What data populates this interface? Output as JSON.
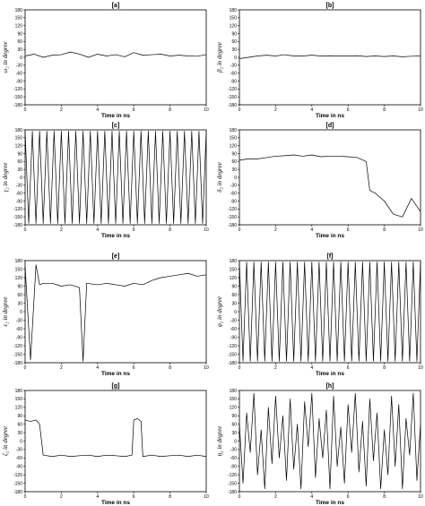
{
  "chart_data": [
    {
      "id": "a",
      "type": "line",
      "title": "[a]",
      "xlabel": "Time in ns",
      "ylabel": "ω₂ in degree",
      "xlim": [
        0,
        10
      ],
      "ylim": [
        -180,
        180
      ],
      "xticks": [
        "0",
        "2",
        "4",
        "6",
        "8",
        "10"
      ],
      "yticks": [
        "180",
        "150",
        "120",
        "90",
        "60",
        "30",
        "0",
        "-30",
        "-60",
        "-90",
        "-120",
        "-150",
        "-180"
      ],
      "x": [
        0,
        0.5,
        1,
        1.5,
        2,
        2.5,
        3,
        3.5,
        4,
        4.5,
        5,
        5.5,
        6,
        6.5,
        7,
        7.5,
        8,
        8.5,
        9,
        9.5,
        10
      ],
      "y": [
        5,
        12,
        0,
        8,
        10,
        20,
        12,
        0,
        12,
        5,
        10,
        2,
        18,
        8,
        10,
        12,
        5,
        8,
        5,
        4,
        10
      ]
    },
    {
      "id": "b",
      "type": "line",
      "title": "[b]",
      "xlabel": "Time in ns",
      "ylabel": "β₂ in degree",
      "xlim": [
        0,
        10
      ],
      "ylim": [
        -180,
        180
      ],
      "xticks": [
        "0",
        "2",
        "4",
        "6",
        "8",
        "10"
      ],
      "yticks": [
        "180",
        "150",
        "120",
        "90",
        "60",
        "30",
        "0",
        "-30",
        "-60",
        "-90",
        "-120",
        "-150",
        "-180"
      ],
      "x": [
        0,
        0.5,
        1,
        1.5,
        2,
        2.5,
        3,
        3.5,
        4,
        4.5,
        5,
        5.5,
        6,
        6.5,
        7,
        7.5,
        8,
        8.5,
        9,
        9.5,
        10
      ],
      "y": [
        -5,
        0,
        5,
        8,
        5,
        10,
        5,
        5,
        8,
        5,
        6,
        5,
        5,
        6,
        3,
        5,
        3,
        5,
        2,
        4,
        5
      ]
    },
    {
      "id": "c",
      "type": "line",
      "title": "[c]",
      "xlabel": "Time in ns",
      "ylabel": "γ₂ in degree",
      "xlim": [
        0,
        10
      ],
      "ylim": [
        -180,
        180
      ],
      "xticks": [
        "0",
        "2",
        "4",
        "6",
        "8",
        "10"
      ],
      "yticks": [
        "180",
        "150",
        "120",
        "90",
        "60",
        "30",
        "0",
        "-30",
        "-60",
        "-90",
        "-120",
        "-150",
        "-180"
      ],
      "x": [
        0,
        0.2,
        0.4,
        0.6,
        0.8,
        1,
        1.2,
        1.4,
        1.6,
        1.8,
        2,
        2.2,
        2.4,
        2.6,
        2.8,
        3,
        3.2,
        3.4,
        3.6,
        3.8,
        4,
        4.2,
        4.4,
        4.6,
        4.8,
        5,
        5.2,
        5.4,
        5.6,
        5.8,
        6,
        6.2,
        6.4,
        6.6,
        6.8,
        7,
        7.2,
        7.4,
        7.6,
        7.8,
        8,
        8.2,
        8.4,
        8.6,
        8.8,
        9,
        9.2,
        9.4,
        9.6,
        9.8,
        10
      ],
      "y": [
        175,
        -175,
        175,
        -175,
        175,
        -175,
        175,
        -175,
        175,
        -175,
        175,
        -175,
        175,
        -175,
        175,
        -175,
        175,
        -175,
        175,
        -175,
        175,
        -175,
        175,
        -175,
        175,
        -175,
        175,
        -175,
        175,
        -175,
        175,
        -175,
        175,
        -175,
        175,
        -175,
        175,
        -175,
        175,
        -175,
        175,
        -175,
        175,
        -175,
        175,
        -175,
        175,
        -175,
        175,
        -175,
        175
      ]
    },
    {
      "id": "d",
      "type": "line",
      "title": "[d]",
      "xlabel": "Time in ns",
      "ylabel": "δ₂ in degree",
      "xlim": [
        0,
        10
      ],
      "ylim": [
        -180,
        180
      ],
      "xticks": [
        "0",
        "2",
        "4",
        "6",
        "8",
        "10"
      ],
      "yticks": [
        "180",
        "150",
        "120",
        "90",
        "60",
        "30",
        "0",
        "-30",
        "-60",
        "-90",
        "-120",
        "-150",
        "-180"
      ],
      "x": [
        0,
        0.5,
        1,
        1.5,
        2,
        2.5,
        3,
        3.5,
        4,
        4.5,
        5,
        5.5,
        6,
        6.5,
        7,
        7.2,
        7.5,
        8,
        8.5,
        9,
        9.5,
        10
      ],
      "y": [
        65,
        70,
        70,
        75,
        80,
        82,
        85,
        80,
        85,
        78,
        80,
        80,
        78,
        75,
        60,
        -50,
        -60,
        -90,
        -140,
        -150,
        -80,
        -130
      ]
    },
    {
      "id": "e",
      "type": "line",
      "title": "[e]",
      "xlabel": "Time in ns",
      "ylabel": "ε₂ in degree",
      "xlim": [
        0,
        10
      ],
      "ylim": [
        -180,
        180
      ],
      "xticks": [
        "0",
        "2",
        "4",
        "6",
        "8",
        "10"
      ],
      "yticks": [
        "180",
        "150",
        "120",
        "90",
        "60",
        "30",
        "0",
        "-30",
        "-60",
        "-90",
        "-120",
        "-150",
        "-180"
      ],
      "x": [
        0,
        0.3,
        0.6,
        0.8,
        1,
        1.5,
        2,
        2.5,
        3,
        3.2,
        3.4,
        4,
        4.5,
        5,
        5.5,
        6,
        6.5,
        7,
        7.5,
        8,
        8.5,
        9,
        9.5,
        10
      ],
      "y": [
        160,
        -170,
        165,
        95,
        100,
        100,
        90,
        95,
        85,
        -175,
        100,
        95,
        100,
        95,
        90,
        100,
        95,
        110,
        120,
        125,
        130,
        135,
        125,
        130
      ]
    },
    {
      "id": "f",
      "type": "line",
      "title": "[f]",
      "xlabel": "Time in ns",
      "ylabel": "φ₂ in degree",
      "xlim": [
        0,
        10
      ],
      "ylim": [
        -180,
        180
      ],
      "xticks": [
        "0",
        "2",
        "4",
        "6",
        "8",
        "10"
      ],
      "yticks": [
        "180",
        "150",
        "120",
        "90",
        "60",
        "30",
        "0",
        "-30",
        "-60",
        "-90",
        "-120",
        "-150",
        "-180"
      ],
      "x": [
        0,
        0.2,
        0.4,
        0.6,
        0.8,
        1,
        1.2,
        1.4,
        1.6,
        1.8,
        2,
        2.2,
        2.4,
        2.6,
        2.8,
        3,
        3.2,
        3.4,
        3.6,
        3.8,
        4,
        4.2,
        4.4,
        4.6,
        4.8,
        5,
        5.2,
        5.4,
        5.6,
        5.8,
        6,
        6.2,
        6.4,
        6.6,
        6.8,
        7,
        7.2,
        7.4,
        7.6,
        7.8,
        8,
        8.2,
        8.4,
        8.6,
        8.8,
        9,
        9.2,
        9.4,
        9.6,
        9.8,
        10
      ],
      "y": [
        175,
        -175,
        175,
        -175,
        175,
        -175,
        175,
        -175,
        175,
        -175,
        175,
        -175,
        175,
        -175,
        175,
        -175,
        175,
        -175,
        175,
        -175,
        175,
        -175,
        175,
        -175,
        175,
        -175,
        175,
        -175,
        175,
        -175,
        175,
        -175,
        175,
        -175,
        175,
        -175,
        175,
        -175,
        175,
        -175,
        175,
        -175,
        175,
        -175,
        175,
        -175,
        175,
        -175,
        175,
        -175,
        175
      ]
    },
    {
      "id": "g",
      "type": "line",
      "title": "[g]",
      "xlabel": "Time in ns",
      "ylabel": "ζ₂ in degree",
      "xlim": [
        0,
        10
      ],
      "ylim": [
        -180,
        180
      ],
      "xticks": [
        "0",
        "2",
        "4",
        "6",
        "8",
        "10"
      ],
      "yticks": [
        "180",
        "150",
        "120",
        "90",
        "60",
        "30",
        "0",
        "-30",
        "-60",
        "-90",
        "-120",
        "-150",
        "-180"
      ],
      "x": [
        0,
        0.3,
        0.6,
        0.8,
        1,
        1.5,
        2,
        2.5,
        3,
        3.5,
        4,
        4.5,
        5,
        5.5,
        5.9,
        6,
        6.2,
        6.4,
        6.5,
        7,
        7.5,
        8,
        8.5,
        9,
        9.5,
        10
      ],
      "y": [
        75,
        70,
        75,
        60,
        -50,
        -55,
        -50,
        -55,
        -52,
        -50,
        -55,
        -50,
        -52,
        -55,
        -50,
        75,
        80,
        70,
        -55,
        -50,
        -55,
        -52,
        -50,
        -55,
        -50,
        -55
      ]
    },
    {
      "id": "h",
      "type": "line",
      "title": "[h]",
      "xlabel": "Time in ns",
      "ylabel": "η₂ in degree",
      "xlim": [
        0,
        10
      ],
      "ylim": [
        -180,
        180
      ],
      "xticks": [
        "0",
        "2",
        "4",
        "6",
        "8",
        "10"
      ],
      "yticks": [
        "180",
        "150",
        "120",
        "90",
        "60",
        "30",
        "0",
        "-30",
        "-60",
        "-90",
        "-120",
        "-150",
        "-180"
      ],
      "x": [
        0,
        0.2,
        0.4,
        0.6,
        0.8,
        1,
        1.2,
        1.4,
        1.6,
        1.8,
        2,
        2.2,
        2.4,
        2.6,
        2.8,
        3,
        3.2,
        3.4,
        3.6,
        3.8,
        4,
        4.2,
        4.4,
        4.6,
        4.8,
        5,
        5.2,
        5.4,
        5.6,
        5.8,
        6,
        6.2,
        6.4,
        6.6,
        6.8,
        7,
        7.2,
        7.4,
        7.6,
        7.8,
        8,
        8.2,
        8.4,
        8.6,
        8.8,
        9,
        9.2,
        9.4,
        9.6,
        9.8,
        10
      ],
      "y": [
        60,
        -150,
        100,
        -40,
        170,
        -120,
        40,
        -170,
        120,
        -80,
        160,
        -60,
        90,
        -140,
        150,
        -100,
        60,
        -170,
        140,
        -20,
        170,
        -130,
        80,
        -60,
        110,
        -170,
        160,
        -90,
        50,
        -150,
        130,
        -40,
        170,
        -110,
        70,
        -160,
        150,
        -70,
        100,
        -170,
        40,
        -120,
        160,
        -90,
        130,
        -170,
        80,
        -50,
        170,
        -140,
        60
      ]
    }
  ]
}
